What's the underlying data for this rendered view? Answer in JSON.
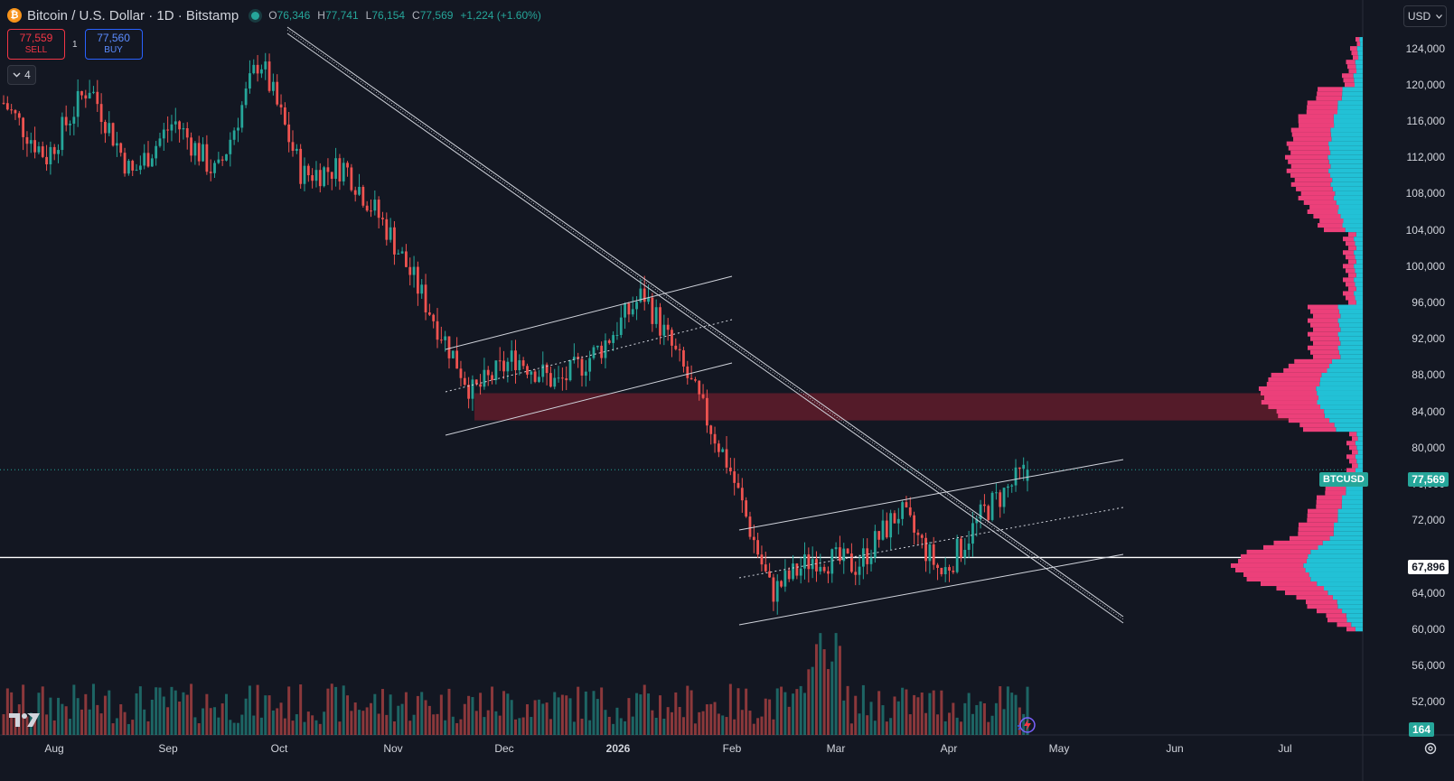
{
  "header": {
    "coin_glyph": "₿",
    "title": "Bitcoin / U.S. Dollar · 1D · Bitstamp",
    "ohlc": [
      {
        "k": "O",
        "v": "76,346"
      },
      {
        "k": "H",
        "v": "77,741"
      },
      {
        "k": "L",
        "v": "76,154"
      },
      {
        "k": "C",
        "v": "77,569"
      }
    ],
    "change": "+1,224 (+1.60%)"
  },
  "trade": {
    "sell_price": "77,559",
    "sell_label": "SELL",
    "spread": "1",
    "buy_price": "77,560",
    "buy_label": "BUY"
  },
  "indicators_toggle": {
    "icon": "chevron-down-icon",
    "count": "4"
  },
  "currency": "USD",
  "price_axis": {
    "ticks": [
      "124,000",
      "120,000",
      "116,000",
      "112,000",
      "108,000",
      "104,000",
      "100,000",
      "96,000",
      "92,000",
      "88,000",
      "84,000",
      "80,000",
      "76,000",
      "72,000",
      "64,000",
      "60,000",
      "56,000",
      "52,000"
    ],
    "symbol_tag": "BTCUSD",
    "last_price": "77,569",
    "horizontal_line_price": "67,896",
    "volume_value": "164"
  },
  "time_axis": {
    "labels": [
      "Aug",
      "Sep",
      "Oct",
      "Nov",
      "Dec",
      "2026",
      "Feb",
      "Mar",
      "Apr",
      "May",
      "Jun",
      "Jul"
    ]
  },
  "colors": {
    "up": "#26a69a",
    "down": "#ef5350",
    "background": "#131722",
    "support_zone": "#6b1e2c",
    "profile_up": "#22c1d6",
    "profile_down": "#ec407a"
  },
  "chart_data": {
    "type": "candlestick",
    "symbol": "BTCUSD",
    "interval": "1D",
    "ylim": [
      52000,
      124000
    ],
    "x_range": [
      "Aug",
      "Jul"
    ],
    "last": {
      "open": 76346,
      "high": 77741,
      "low": 76154,
      "close": 77569
    },
    "price_path": [
      {
        "x": "Aug",
        "y": 118000
      },
      {
        "x": "Aug mid",
        "y": 112000
      },
      {
        "x": "Aug late",
        "y": 120000
      },
      {
        "x": "Sep",
        "y": 110000
      },
      {
        "x": "Sep mid",
        "y": 116000
      },
      {
        "x": "Sep late",
        "y": 110000
      },
      {
        "x": "Oct",
        "y": 123000
      },
      {
        "x": "Oct mid",
        "y": 110000
      },
      {
        "x": "Oct late",
        "y": 111000
      },
      {
        "x": "Nov",
        "y": 104000
      },
      {
        "x": "Nov mid",
        "y": 95000
      },
      {
        "x": "Nov late",
        "y": 86000
      },
      {
        "x": "Dec",
        "y": 90000
      },
      {
        "x": "Dec mid",
        "y": 87000
      },
      {
        "x": "2026",
        "y": 91000
      },
      {
        "x": "Jan mid",
        "y": 97000
      },
      {
        "x": "Jan late",
        "y": 88000
      },
      {
        "x": "Feb",
        "y": 78000
      },
      {
        "x": "Feb early",
        "y": 64000
      },
      {
        "x": "Feb mid",
        "y": 68000
      },
      {
        "x": "Mar",
        "y": 67000
      },
      {
        "x": "Mar mid",
        "y": 73000
      },
      {
        "x": "Apr",
        "y": 66000
      },
      {
        "x": "Apr mid",
        "y": 73000
      },
      {
        "x": "Apr late",
        "y": 77569
      }
    ],
    "horizontal_line": 67896,
    "support_zone": [
      83000,
      86000
    ],
    "volume_last": 164,
    "grid": false
  }
}
